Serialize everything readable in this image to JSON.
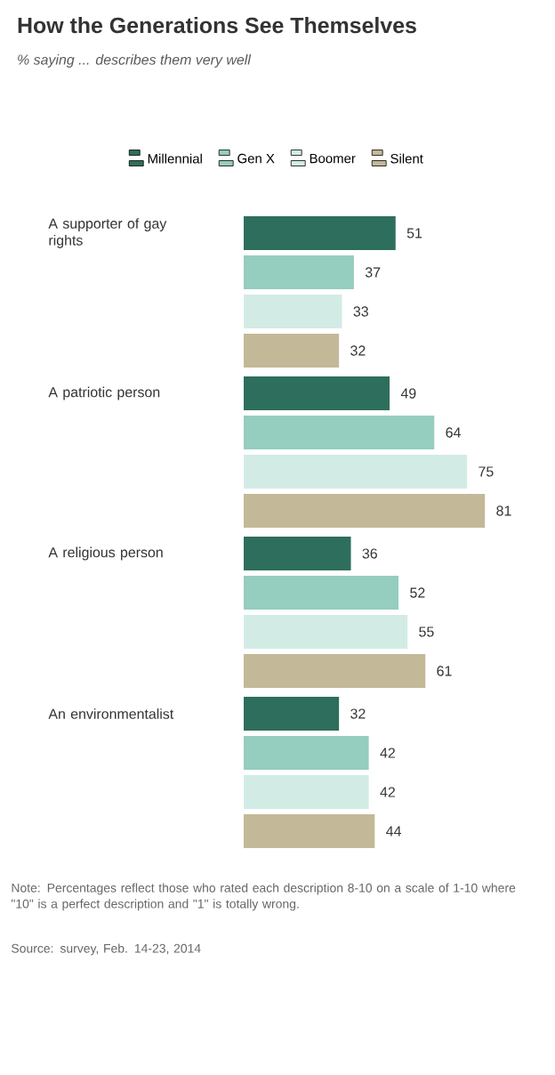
{
  "chart_data": {
    "type": "bar",
    "orientation": "horizontal",
    "title": "How the Generations See Themselves",
    "subtitle": "% saying ... describes them very well",
    "categories": [
      "A supporter of gay rights",
      "A patriotic person",
      "A religious person",
      "An environmentalist"
    ],
    "series": [
      {
        "name": "Millennial",
        "color": "#2e6e5c",
        "values": [
          51,
          49,
          36,
          32
        ]
      },
      {
        "name": "Gen X",
        "color": "#95cdbe",
        "values": [
          37,
          64,
          52,
          42
        ]
      },
      {
        "name": "Boomer",
        "color": "#d2ece5",
        "values": [
          33,
          75,
          55,
          42
        ]
      },
      {
        "name": "Silent",
        "color": "#c3b898",
        "values": [
          32,
          81,
          61,
          44
        ]
      }
    ],
    "data_labels": true,
    "legend": "top",
    "tick_labels": "y",
    "annotations": [
      "Note: Percentages reflect those who rated each description 8-10 on a scale of 1-10 where \"10\" is a perfect description and \"1\" is totally wrong.",
      "Source: survey, Feb. 14-23, 2014"
    ]
  }
}
